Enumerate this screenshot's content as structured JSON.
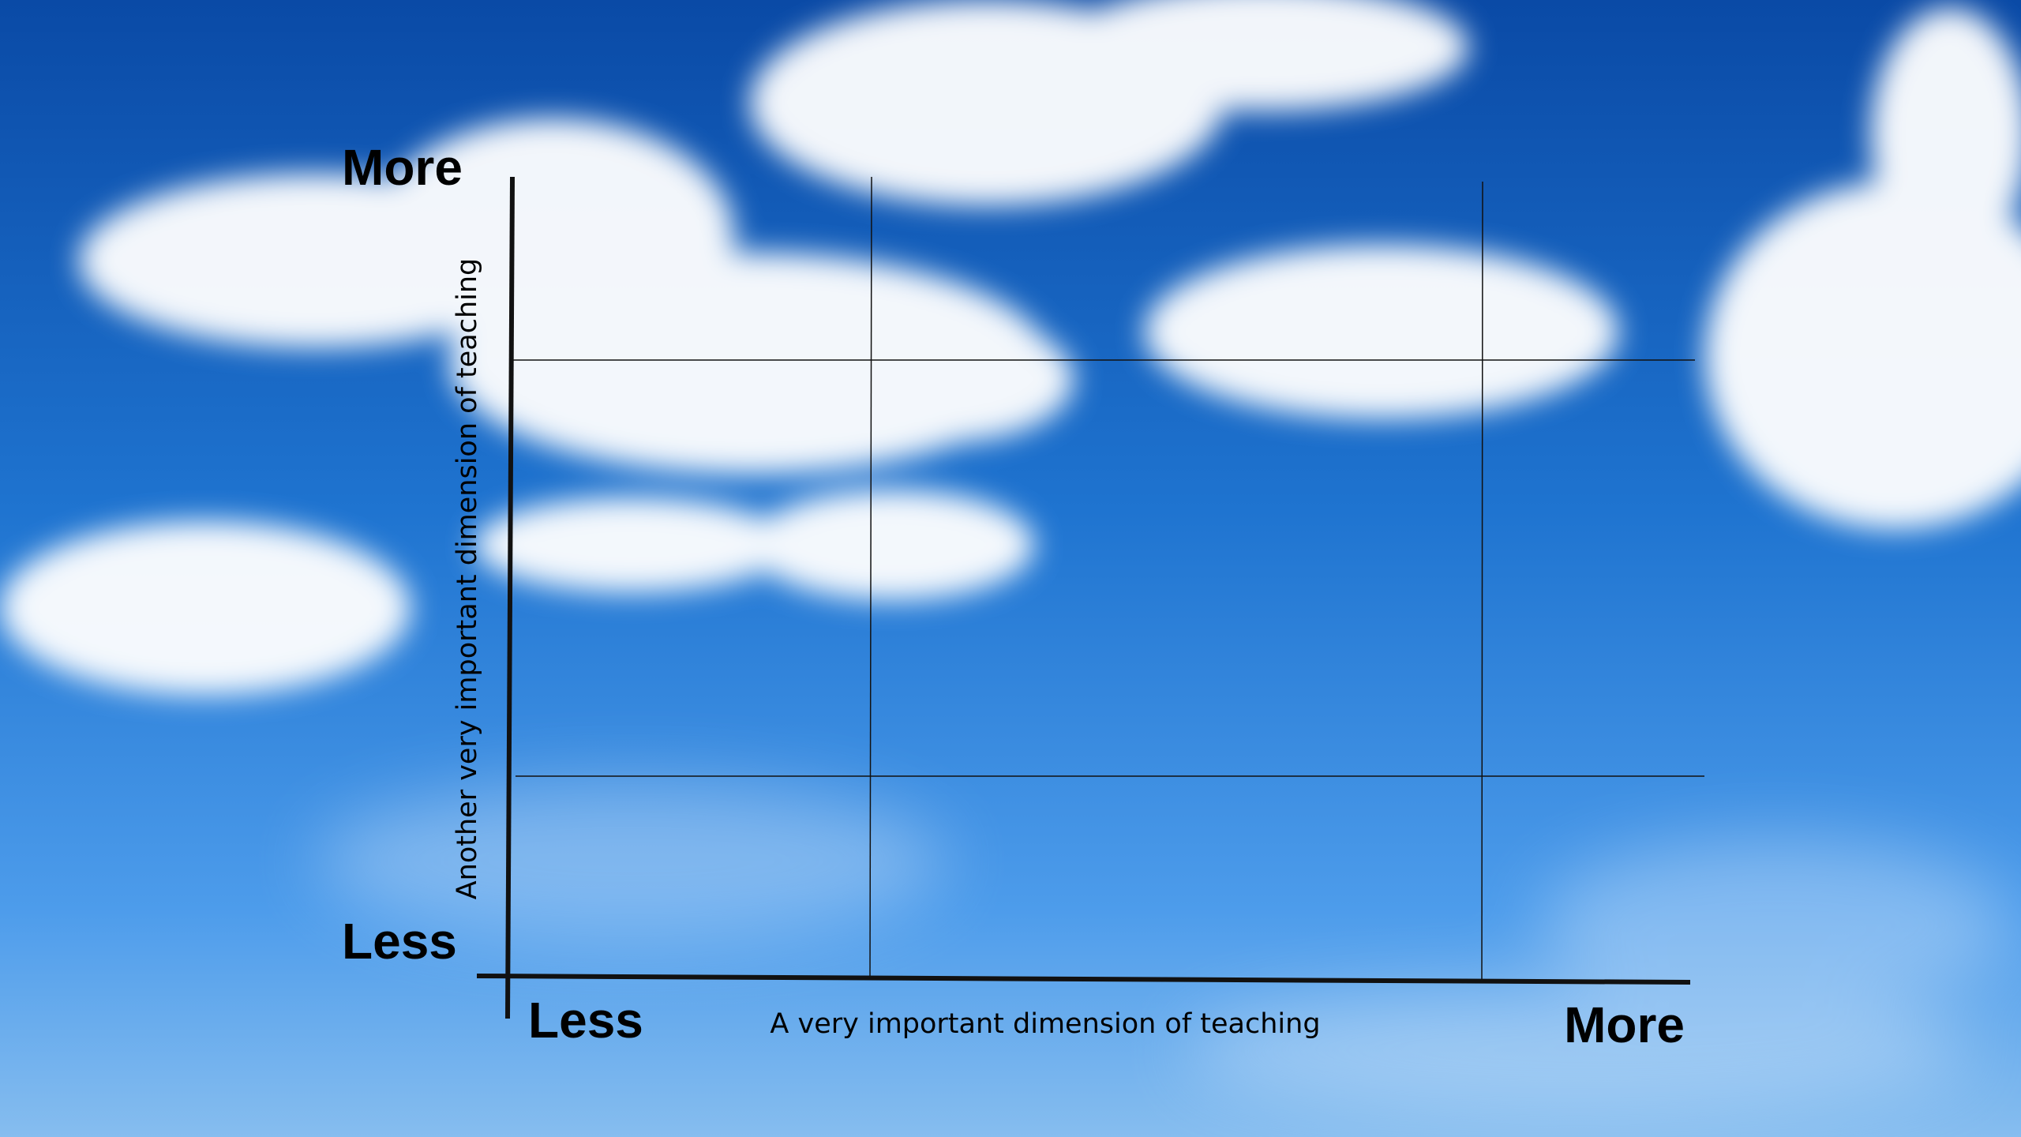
{
  "y_axis": {
    "top_label": "More",
    "bottom_label": "Less",
    "title": "Another very important dimension of teaching"
  },
  "x_axis": {
    "left_label": "Less",
    "right_label": "More",
    "title": "A very important dimension of teaching"
  }
}
